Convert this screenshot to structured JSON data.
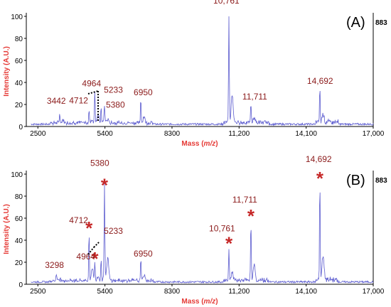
{
  "chart_data": [
    {
      "type": "line",
      "panel_label": "(A)",
      "max_intensity_label": "883",
      "xlabel_main": "Mass (",
      "xlabel_italic": "m/z",
      "xlabel_end": ")",
      "ylabel": "Intensity (A.U.)",
      "xlim": [
        2000,
        17000
      ],
      "ylim": [
        0,
        100
      ],
      "x_ticks": [
        2500,
        5400,
        8300,
        11200,
        14100,
        17000
      ],
      "x_tick_labels": [
        "2500",
        "5400",
        "8300",
        "11,200",
        "14,100",
        "17,000"
      ],
      "y_ticks": [
        0,
        20,
        40,
        60,
        80,
        100
      ],
      "y_tick_labels": [
        "0",
        "20",
        "40",
        "60",
        "80",
        "100"
      ],
      "series": [
        {
          "color": "#5c5ccf",
          "peaks": [
            {
              "mass": 3442,
              "intensity": 9,
              "label": "3442",
              "starred": false
            },
            {
              "mass": 4712,
              "intensity": 12,
              "label": "4712",
              "starred": false
            },
            {
              "mass": 4964,
              "intensity": 30,
              "label": "4964",
              "starred": false
            },
            {
              "mass": 5233,
              "intensity": 14,
              "label": "5233",
              "starred": false
            },
            {
              "mass": 5380,
              "intensity": 12,
              "label": "5380",
              "starred": false
            },
            {
              "mass": 6950,
              "intensity": 22,
              "label": "6950",
              "starred": false
            },
            {
              "mass": 10761,
              "intensity": 100,
              "label": "10,761",
              "starred": false
            },
            {
              "mass": 11711,
              "intensity": 18,
              "label": "11,711",
              "starred": false
            },
            {
              "mass": 14692,
              "intensity": 31,
              "label": "14,692",
              "starred": false
            }
          ]
        }
      ]
    },
    {
      "type": "line",
      "panel_label": "(B)",
      "max_intensity_label": "883",
      "xlabel_main": "Mass (",
      "xlabel_italic": "m/z",
      "xlabel_end": ")",
      "ylabel": "Intensity (A.U.)",
      "xlim": [
        2000,
        17000
      ],
      "ylim": [
        0,
        100
      ],
      "x_ticks": [
        2500,
        5400,
        8300,
        11200,
        14100,
        17000
      ],
      "x_tick_labels": [
        "2500",
        "5400",
        "8300",
        "11,200",
        "14,100",
        "17,000"
      ],
      "y_ticks": [
        0,
        20,
        40,
        60,
        80,
        100
      ],
      "y_tick_labels": [
        "0",
        "20",
        "40",
        "60",
        "80",
        "100"
      ],
      "series": [
        {
          "color": "#5c5ccf",
          "peaks": [
            {
              "mass": 3298,
              "intensity": 7,
              "label": "3298",
              "starred": false
            },
            {
              "mass": 4712,
              "intensity": 44,
              "label": "4712",
              "starred": true
            },
            {
              "mass": 4964,
              "intensity": 16,
              "label": "4964",
              "starred": true
            },
            {
              "mass": 5233,
              "intensity": 20,
              "label": "5233",
              "starred": false
            },
            {
              "mass": 5380,
              "intensity": 83,
              "label": "5380",
              "starred": true
            },
            {
              "mass": 6950,
              "intensity": 20,
              "label": "6950",
              "starred": false
            },
            {
              "mass": 10761,
              "intensity": 30,
              "label": "10,761",
              "starred": true
            },
            {
              "mass": 11711,
              "intensity": 55,
              "label": "11,711",
              "starred": true
            },
            {
              "mass": 14692,
              "intensity": 89,
              "label": "14,692",
              "starred": true
            }
          ]
        }
      ]
    }
  ]
}
